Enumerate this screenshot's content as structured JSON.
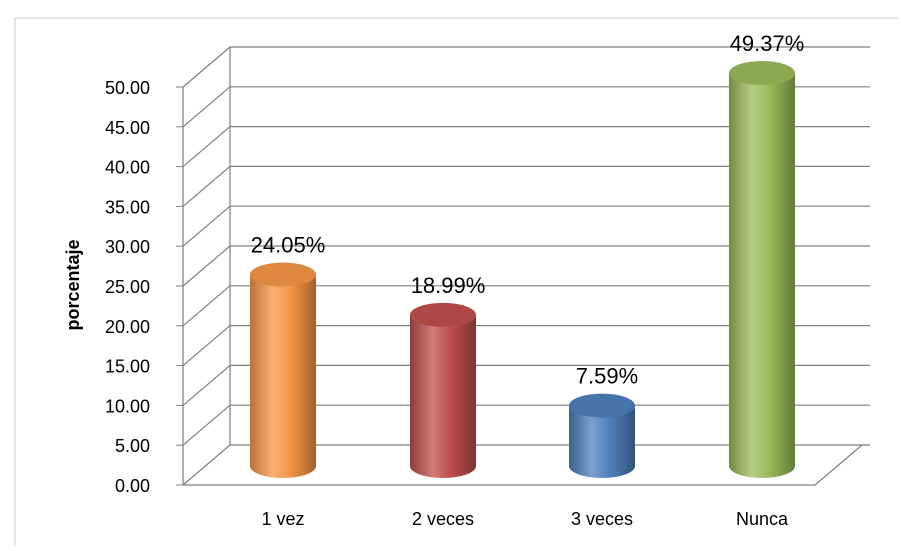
{
  "chart_data": {
    "type": "bar",
    "style": "3d-cylinder",
    "categories": [
      "1 vez",
      "2 veces",
      "3 veces",
      "Nunca"
    ],
    "values": [
      24.05,
      18.99,
      7.59,
      49.37
    ],
    "data_labels": [
      "24.05%",
      "18.99%",
      "7.59%",
      "49.37%"
    ],
    "colors": [
      "#F79646",
      "#C0504D",
      "#4F81BD",
      "#9BBB59"
    ],
    "title": "",
    "xlabel": "",
    "ylabel": "porcentaje",
    "ylim": [
      0,
      50
    ],
    "yticks": [
      "0.00",
      "5.00",
      "10.00",
      "15.00",
      "20.00",
      "25.00",
      "30.00",
      "35.00",
      "40.00",
      "45.00",
      "50.00"
    ],
    "grid": true,
    "legend": "none"
  }
}
